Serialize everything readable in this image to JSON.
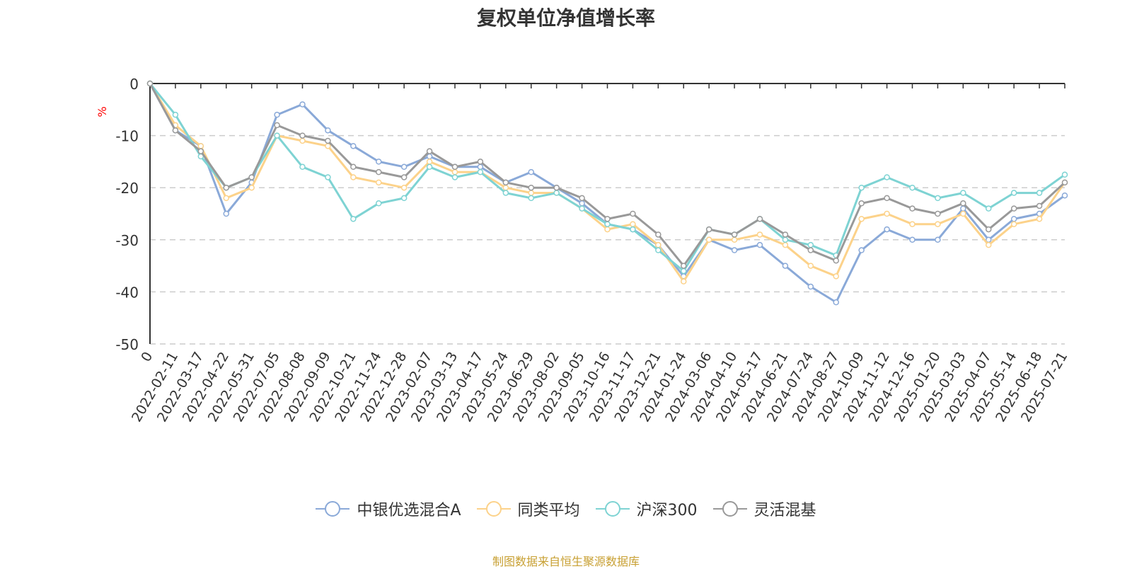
{
  "chart_data": {
    "type": "line",
    "title": "复权单位净值增长率",
    "ylabel": "%",
    "ylim": [
      -50,
      0
    ],
    "yticks": [
      0,
      -10,
      -20,
      -30,
      -40,
      -50
    ],
    "y_grid": true,
    "x_tick_labels": [
      "0",
      "2022-02-11",
      "2022-03-17",
      "2022-04-22",
      "2022-05-31",
      "2022-07-05",
      "2022-08-08",
      "2022-09-09",
      "2022-10-21",
      "2022-11-24",
      "2022-12-28",
      "2023-02-07",
      "2023-03-13",
      "2023-04-17",
      "2023-05-24",
      "2023-06-29",
      "2023-08-02",
      "2023-09-05",
      "2023-10-16",
      "2023-11-17",
      "2023-12-21",
      "2024-01-24",
      "2024-03-06",
      "2024-04-10",
      "2024-05-17",
      "2024-06-21",
      "2024-07-24",
      "2024-08-27",
      "2024-10-09",
      "2024-11-12",
      "2024-12-16",
      "2025-01-20",
      "2025-03-03",
      "2025-04-07",
      "2025-05-14",
      "2025-06-18",
      "2025-07-21"
    ],
    "legend_position": "bottom",
    "x": [
      "0",
      "2022-02-11",
      "2022-03-17",
      "2022-04-22",
      "2022-05-31",
      "2022-07-05",
      "2022-08-08",
      "2022-09-09",
      "2022-10-21",
      "2022-11-24",
      "2022-12-28",
      "2023-02-07",
      "2023-03-13",
      "2023-04-17",
      "2023-05-24",
      "2023-06-29",
      "2023-08-02",
      "2023-09-05",
      "2023-10-16",
      "2023-11-17",
      "2023-12-21",
      "2024-01-24",
      "2024-03-06",
      "2024-04-10",
      "2024-05-17",
      "2024-06-21",
      "2024-07-24",
      "2024-08-27",
      "2024-10-09",
      "2024-11-12",
      "2024-12-16",
      "2025-01-20",
      "2025-03-03",
      "2025-04-07",
      "2025-05-14",
      "2025-06-18",
      "2025-07-21"
    ],
    "series": [
      {
        "name": "中银优选混合A",
        "color": "#8aa9d8",
        "values": [
          0,
          -9,
          -12,
          -25,
          -19,
          -6,
          -4,
          -9,
          -12,
          -15,
          -16,
          -14,
          -16,
          -16,
          -19,
          -17,
          -20,
          -23,
          -27,
          -28,
          -31,
          -37,
          -30,
          -32,
          -31,
          -35,
          -39,
          -42,
          -32,
          -28,
          -30,
          -30,
          -24,
          -30,
          -26,
          -25,
          -21.5
        ]
      },
      {
        "name": "同类平均",
        "color": "#fcd28a",
        "values": [
          0,
          -8,
          -12,
          -22,
          -20,
          -10,
          -11,
          -12,
          -18,
          -19,
          -20,
          -15,
          -17,
          -17,
          -20,
          -21,
          -21,
          -24,
          -28,
          -27,
          -31,
          -38,
          -30,
          -30,
          -29,
          -31,
          -35,
          -37,
          -26,
          -25,
          -27,
          -27,
          -25,
          -31,
          -27,
          -26,
          -19
        ]
      },
      {
        "name": "沪深300",
        "color": "#7ed3d3",
        "values": [
          0,
          -6,
          -14,
          -20,
          -18,
          -10,
          -16,
          -18,
          -26,
          -23,
          -22,
          -16,
          -18,
          -17,
          -21,
          -22,
          -21,
          -24,
          -27,
          -28,
          -32,
          -36,
          -28,
          -29,
          -26,
          -30,
          -31,
          -33,
          -20,
          -18,
          -20,
          -22,
          -21,
          -24,
          -21,
          -21,
          -17.5
        ]
      },
      {
        "name": "灵活混基",
        "color": "#999999",
        "values": [
          0,
          -9,
          -13,
          -20,
          -18,
          -8,
          -10,
          -11,
          -16,
          -17,
          -18,
          -13,
          -16,
          -15,
          -19,
          -20,
          -20,
          -22,
          -26,
          -25,
          -29,
          -35,
          -28,
          -29,
          -26,
          -29,
          -32,
          -34,
          -23,
          -22,
          -24,
          -25,
          -23,
          -28,
          -24,
          -23.5,
          -19
        ]
      }
    ]
  },
  "source_note": "制图数据来自恒生聚源数据库"
}
